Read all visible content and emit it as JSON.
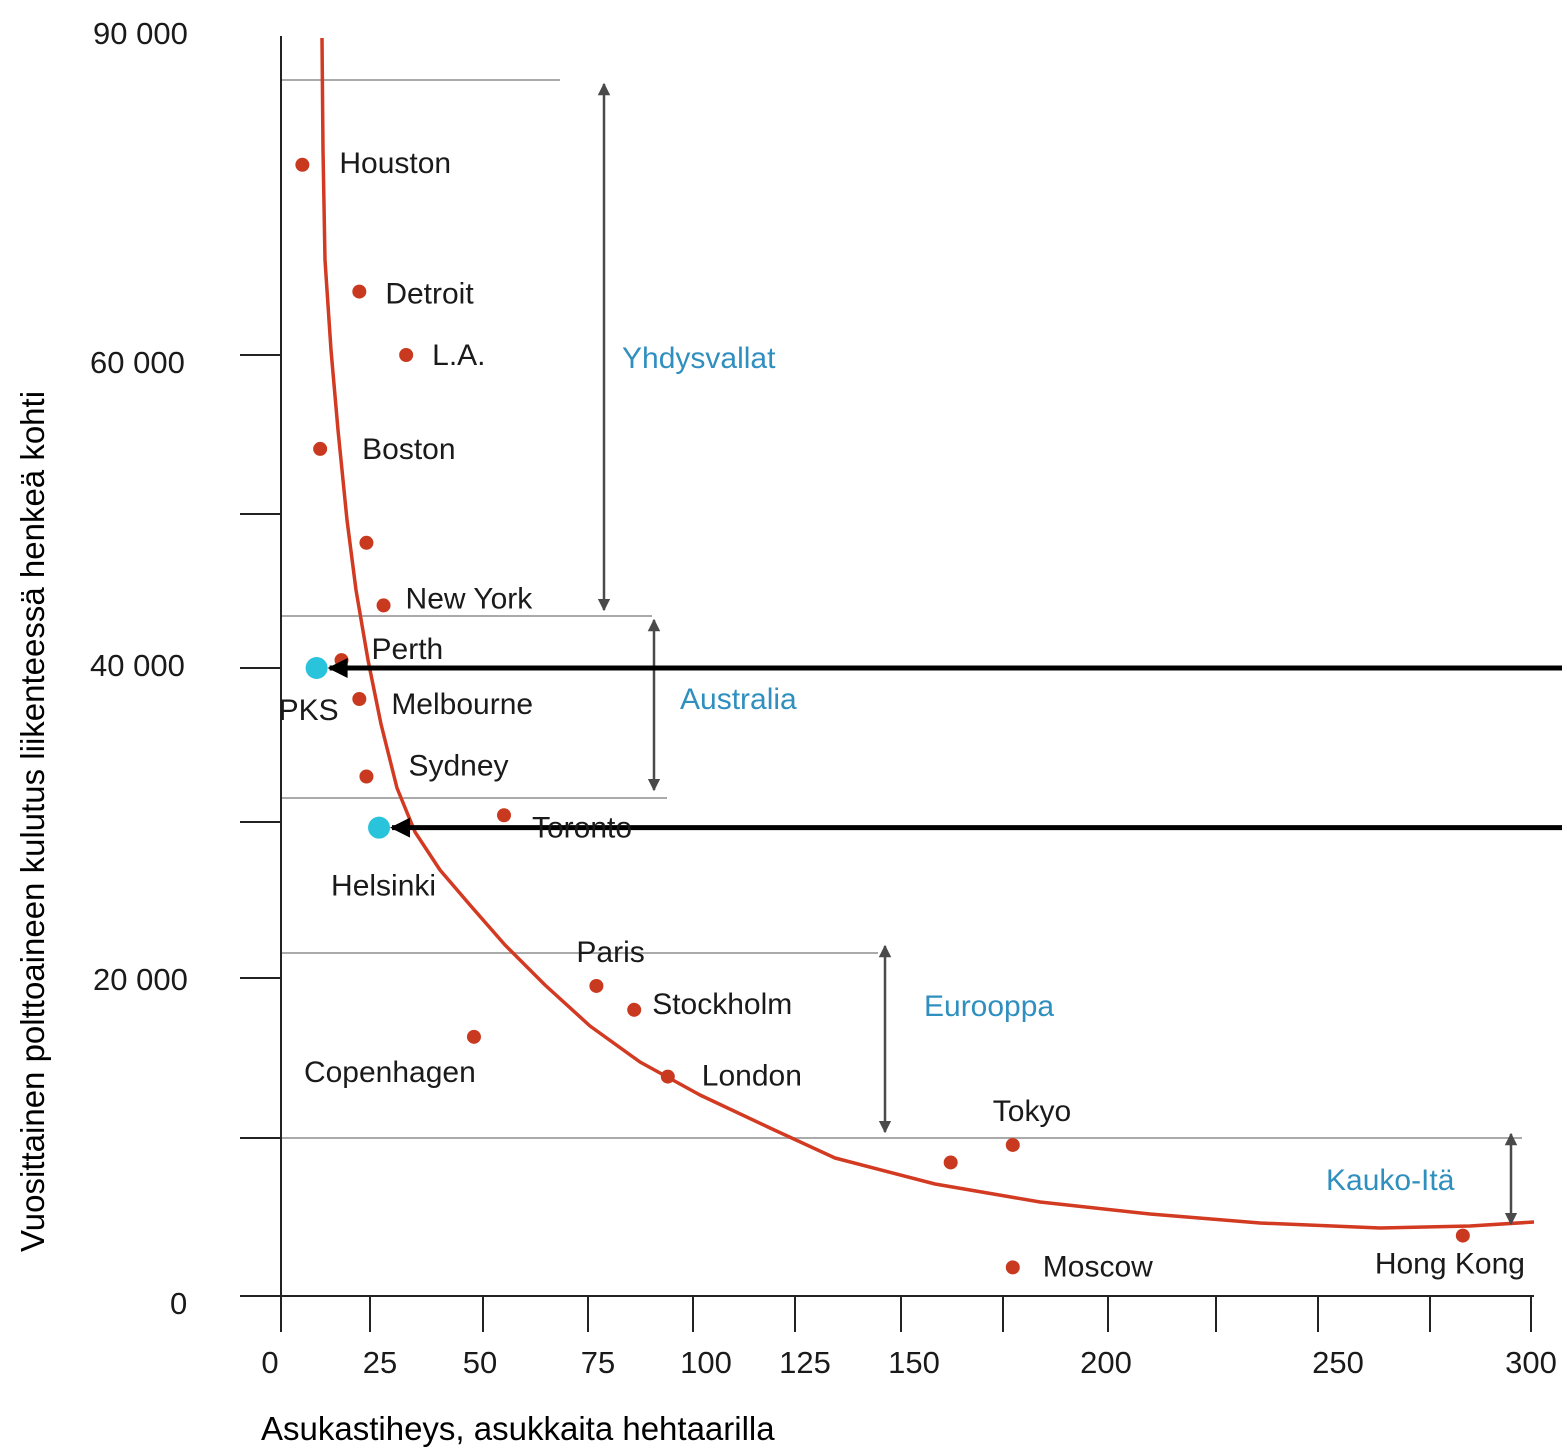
{
  "chart_data": {
    "type": "scatter",
    "xlabel": "Asukastiheys, asukkaita hehtaarilla",
    "ylabel": "Vuosittainen polttoaineen kulutus liikenteessä henkeä kohti",
    "x_tick_labels": [
      "0",
      "25",
      "50",
      "75",
      "100",
      "125",
      "150",
      "200",
      "250",
      "300"
    ],
    "y_tick_labels": [
      "0",
      "20 000",
      "40 000",
      "60 000",
      "90 000"
    ],
    "points": [
      {
        "label": "Houston",
        "x": 6,
        "y": 78000
      },
      {
        "label": "Detroit",
        "x": 22,
        "y": 66000
      },
      {
        "label": "L.A.",
        "x": 33,
        "y": 60000
      },
      {
        "label": "Boston",
        "x": 11,
        "y": 54000
      },
      {
        "label": "",
        "x": 24,
        "y": 48000
      },
      {
        "label": "New York",
        "x": 28,
        "y": 44000
      },
      {
        "label": "Perth",
        "x": 17,
        "y": 40500
      },
      {
        "label": "Melbourne",
        "x": 22,
        "y": 38000
      },
      {
        "label": "Sydney",
        "x": 24,
        "y": 33000
      },
      {
        "label": "Toronto",
        "x": 55,
        "y": 30500
      },
      {
        "label": "Paris",
        "x": 77,
        "y": 19500
      },
      {
        "label": "Stockholm",
        "x": 86,
        "y": 18000
      },
      {
        "label": "Copenhagen",
        "x": 48,
        "y": 16300
      },
      {
        "label": "London",
        "x": 94,
        "y": 13800
      },
      {
        "label": "Tokyo",
        "x": 177,
        "y": 9500
      },
      {
        "label": "",
        "x": 162,
        "y": 8400
      },
      {
        "label": "Moscow",
        "x": 177,
        "y": 1800
      },
      {
        "label": "Hong Kong",
        "x": 284,
        "y": 3800
      }
    ],
    "highlighted_points": [
      {
        "label": "PKS",
        "x": 10,
        "y": 40000
      },
      {
        "label": "Helsinki",
        "x": 27,
        "y": 29700
      }
    ],
    "regions": [
      {
        "label": "Yhdysvallat",
        "y_from": 43000,
        "y_to": 85000
      },
      {
        "label": "Australia",
        "y_from": 31500,
        "y_to": 43000
      },
      {
        "label": "Eurooppa",
        "y_from": 10500,
        "y_to": 21500
      },
      {
        "label": "Kauko-Itä",
        "y_from": 4000,
        "y_to": 10500
      }
    ],
    "trend": "hyperbolic decreasing curve",
    "colors": {
      "city_point": "#c8391f",
      "highlight_point": "#29c4dc",
      "trend_line": "#d23a22",
      "region_label": "#2f8fbf",
      "axis_title": "#2f94c2",
      "guide_line": "#aaaaaa",
      "range_arrow": "#4a4a4a",
      "pointer_arrow": "#000000"
    }
  }
}
